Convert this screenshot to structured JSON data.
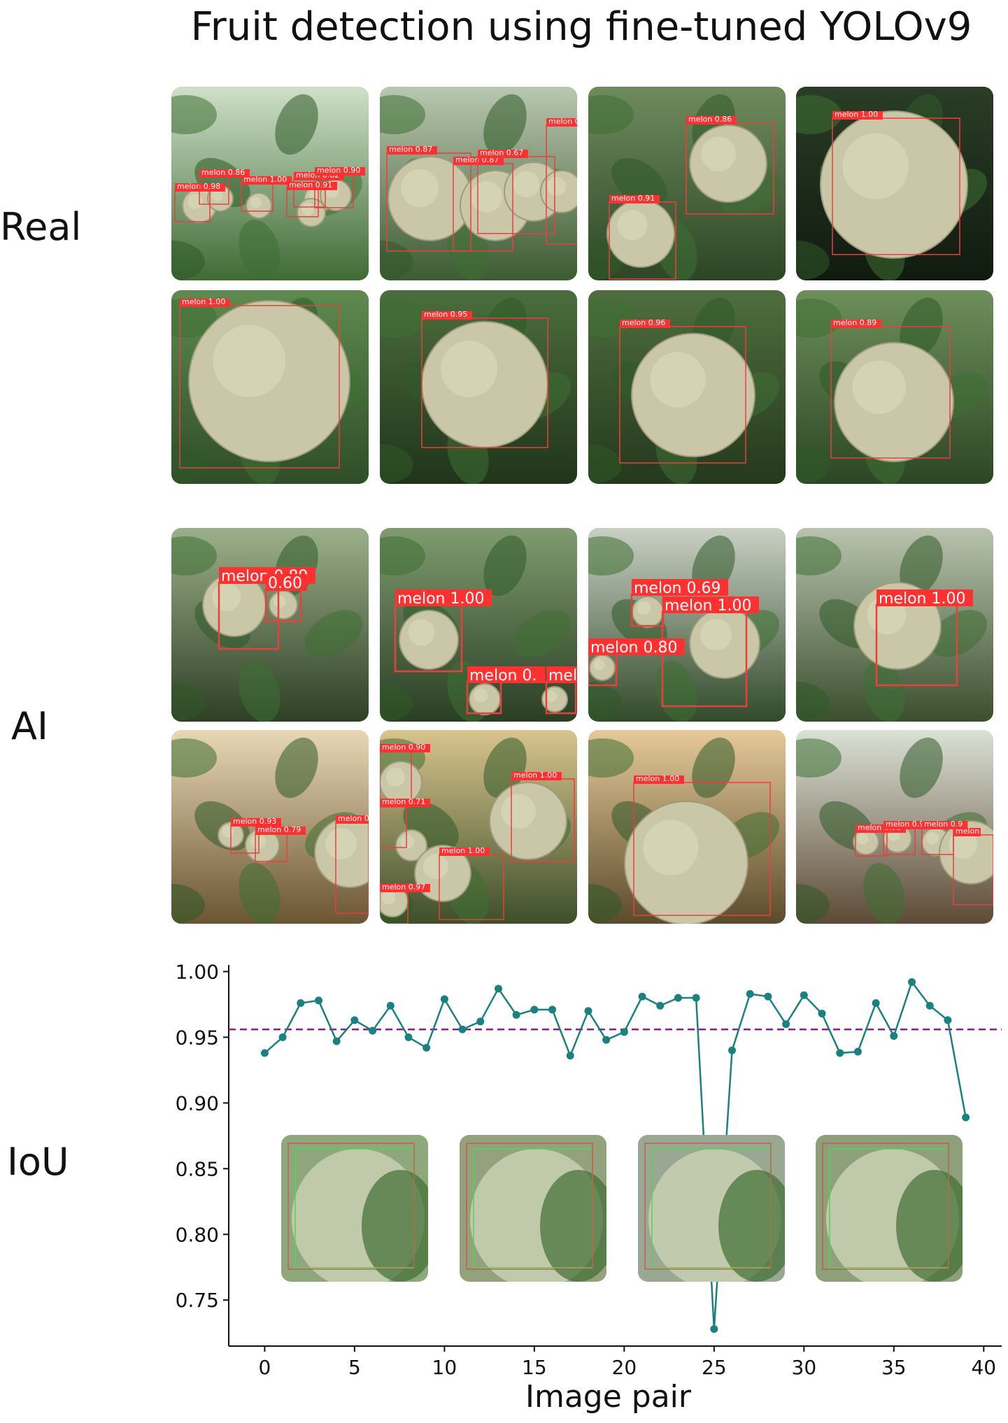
{
  "title": "Fruit detection using fine-tuned YOLOv9",
  "row_labels": {
    "real": "Real",
    "ai": "AI",
    "iou": "IoU"
  },
  "real_tiles": [
    {
      "scene": "greenhouse-aisle",
      "detections": [
        {
          "label": "melon 0.98"
        },
        {
          "label": "melon 0.86"
        },
        {
          "label": "melon 1.00"
        },
        {
          "label": "melon 0.82"
        },
        {
          "label": "melon 0.90"
        },
        {
          "label": "melon 0.91"
        }
      ]
    },
    {
      "scene": "hanging-melons",
      "detections": [
        {
          "label": "melon 0.87"
        },
        {
          "label": "melon 0.87"
        },
        {
          "label": "melon 0.67"
        },
        {
          "label": "melon 0.82"
        }
      ]
    },
    {
      "scene": "vine-melons",
      "detections": [
        {
          "label": "melon 0.86"
        },
        {
          "label": "melon 0.91"
        }
      ]
    },
    {
      "scene": "closeup-dark",
      "detections": [
        {
          "label": "melon 1.00"
        }
      ]
    },
    {
      "scene": "closeup-large",
      "detections": [
        {
          "label": "melon 1.00"
        }
      ]
    },
    {
      "scene": "closeup-vine",
      "detections": [
        {
          "label": "melon 0.95"
        }
      ]
    },
    {
      "scene": "closeup-round",
      "detections": [
        {
          "label": "melon 0.96"
        }
      ]
    },
    {
      "scene": "closeup-leafy",
      "detections": [
        {
          "label": "melon 0.89"
        }
      ]
    }
  ],
  "ai_tiles": [
    {
      "scene": "ai-canopy",
      "detections": [
        {
          "label": "melon 0.89"
        },
        {
          "label": "0.60"
        }
      ]
    },
    {
      "scene": "ai-vines",
      "detections": [
        {
          "label": "melon 1.00"
        },
        {
          "label": "melon 0."
        },
        {
          "label": "mel"
        }
      ]
    },
    {
      "scene": "ai-greenhouse-roof",
      "detections": [
        {
          "label": "melon 0.69"
        },
        {
          "label": "melon 1.00"
        },
        {
          "label": "melon 0.80"
        }
      ]
    },
    {
      "scene": "ai-single",
      "detections": [
        {
          "label": "melon 1.00"
        }
      ]
    },
    {
      "scene": "ai-sunny-aisle",
      "detections": [
        {
          "label": "melon 0.93"
        },
        {
          "label": "melon 0.79"
        },
        {
          "label": "melon 0"
        }
      ]
    },
    {
      "scene": "ai-sunlit-cluster",
      "detections": [
        {
          "label": "melon 0.90"
        },
        {
          "label": "melon 0.71"
        },
        {
          "label": "melon 1.00"
        },
        {
          "label": "melon 1.00"
        },
        {
          "label": "melon 0.97"
        }
      ]
    },
    {
      "scene": "ai-large-sunlit",
      "detections": [
        {
          "label": "melon 1.00"
        }
      ]
    },
    {
      "scene": "ai-long-aisle",
      "detections": [
        {
          "label": "melon 0.93"
        },
        {
          "label": "melon 0.9"
        },
        {
          "label": "melon 0.9"
        },
        {
          "label": "melon"
        }
      ]
    }
  ],
  "chart_data": {
    "type": "line",
    "title": "",
    "xlabel": "Image pair",
    "ylabel": "",
    "xlim": [
      -2,
      41
    ],
    "ylim": [
      0.715,
      1.005
    ],
    "x_ticks": [
      0,
      5,
      10,
      15,
      20,
      25,
      30,
      35,
      40
    ],
    "y_ticks": [
      0.75,
      0.8,
      0.85,
      0.9,
      0.95,
      1.0
    ],
    "x_tick_labels": [
      "0",
      "5",
      "10",
      "15",
      "20",
      "25",
      "30",
      "35",
      "40"
    ],
    "y_tick_labels": [
      "0.75",
      "0.80",
      "0.85",
      "0.90",
      "0.95",
      "1.00"
    ],
    "series": [
      {
        "name": "",
        "color": "#1a8080",
        "x": [
          0,
          1,
          2,
          3,
          4,
          5,
          6,
          7,
          8,
          9,
          10,
          11,
          12,
          13,
          14,
          15,
          16,
          17,
          18,
          19,
          20,
          21,
          22,
          23,
          24,
          25,
          26,
          27,
          28,
          29,
          30,
          31,
          32,
          33,
          34,
          35,
          36,
          37,
          38,
          39
        ],
        "y": [
          0.938,
          0.95,
          0.976,
          0.978,
          0.947,
          0.963,
          0.955,
          0.974,
          0.95,
          0.942,
          0.979,
          0.956,
          0.962,
          0.987,
          0.967,
          0.971,
          0.971,
          0.936,
          0.97,
          0.948,
          0.954,
          0.981,
          0.974,
          0.98,
          0.98,
          0.728,
          0.94,
          0.983,
          0.981,
          0.96,
          0.982,
          0.968,
          0.938,
          0.939,
          0.976,
          0.951,
          0.992,
          0.974,
          0.963,
          0.889
        ]
      }
    ],
    "mean_line": {
      "y": 0.956,
      "color": "#8b1a8b",
      "style": "dashed"
    },
    "legend": "none",
    "grid": false,
    "inset_thumbnails": 4
  }
}
